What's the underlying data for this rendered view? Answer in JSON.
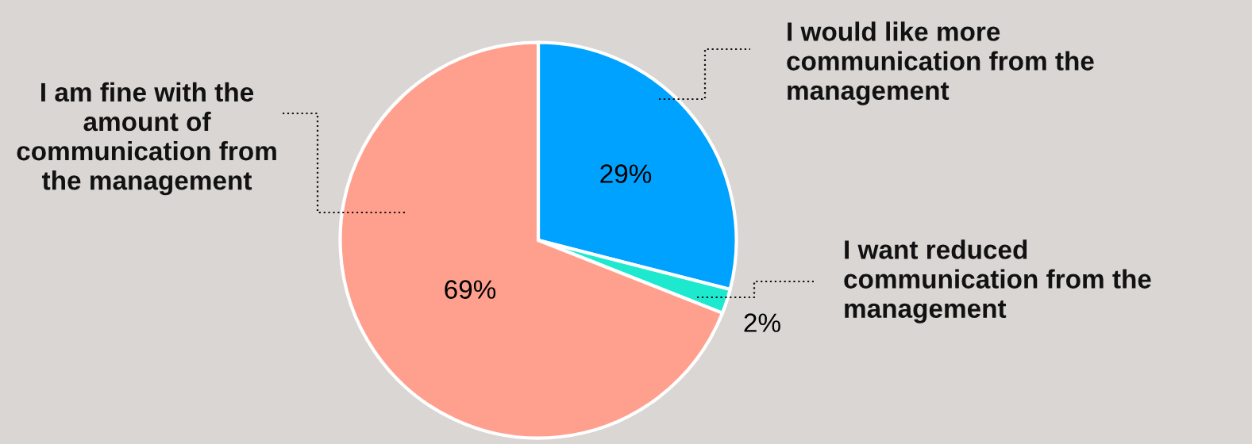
{
  "chart_data": {
    "type": "pie",
    "categories": [
      "I would like more communication from the management",
      "I want reduced communication from the management",
      "I am fine with the amount of communication from the management"
    ],
    "values": [
      29,
      2,
      69
    ],
    "colors": [
      "#00a2ff",
      "#1de9cf",
      "#ffa08f"
    ],
    "value_labels": [
      "29%",
      "2%",
      "69%"
    ]
  }
}
